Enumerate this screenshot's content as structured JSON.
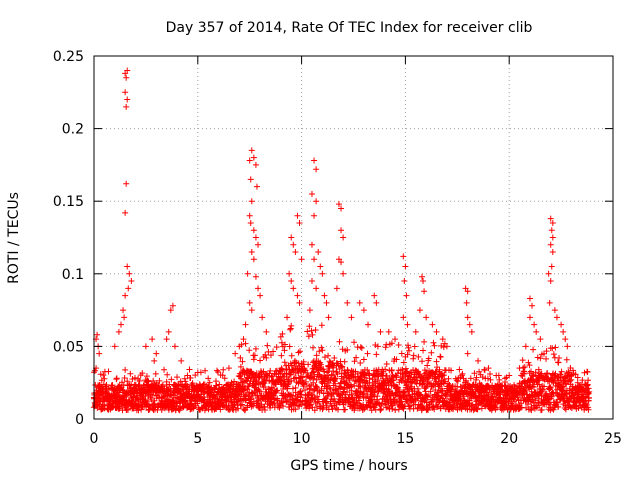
{
  "chart_data": {
    "type": "scatter",
    "title": "Day 357 of 2014, Rate Of TEC Index for receiver clib",
    "xlabel": "GPS time / hours",
    "ylabel": "ROTI / TECUs",
    "xlim": [
      0,
      25
    ],
    "ylim": [
      0,
      0.25
    ],
    "xticks": [
      0,
      5,
      10,
      15,
      20,
      25
    ],
    "xtick_labels": [
      "0",
      "5",
      "10",
      "15",
      "20",
      "25"
    ],
    "yticks": [
      0,
      0.05,
      0.1,
      0.15,
      0.2,
      0.25
    ],
    "ytick_labels": [
      "0",
      "0.05",
      "0.1",
      "0.15",
      "0.2",
      "0.25"
    ],
    "grid": true,
    "marker": "+",
    "color": "#ff0000",
    "series": [
      {
        "name": "ROTI",
        "points": [
          [
            0.1,
            0.055
          ],
          [
            0.15,
            0.058
          ],
          [
            0.2,
            0.05
          ],
          [
            0.25,
            0.045
          ],
          [
            0.1,
            0.035
          ],
          [
            1.5,
            0.238
          ],
          [
            1.55,
            0.235
          ],
          [
            1.6,
            0.24
          ],
          [
            1.5,
            0.225
          ],
          [
            1.55,
            0.215
          ],
          [
            1.6,
            0.22
          ],
          [
            1.55,
            0.162
          ],
          [
            1.5,
            0.142
          ],
          [
            1.6,
            0.105
          ],
          [
            1.7,
            0.1
          ],
          [
            1.8,
            0.095
          ],
          [
            1.65,
            0.09
          ],
          [
            1.5,
            0.085
          ],
          [
            1.4,
            0.075
          ],
          [
            1.45,
            0.07
          ],
          [
            1.2,
            0.06
          ],
          [
            1.3,
            0.065
          ],
          [
            1.0,
            0.05
          ],
          [
            2.5,
            0.05
          ],
          [
            2.8,
            0.055
          ],
          [
            3.0,
            0.045
          ],
          [
            2.9,
            0.04
          ],
          [
            3.7,
            0.075
          ],
          [
            3.8,
            0.078
          ],
          [
            3.6,
            0.06
          ],
          [
            3.5,
            0.055
          ],
          [
            3.9,
            0.05
          ],
          [
            4.2,
            0.04
          ],
          [
            4.5,
            0.03
          ],
          [
            5.0,
            0.032
          ],
          [
            5.5,
            0.028
          ],
          [
            6.5,
            0.035
          ],
          [
            6.8,
            0.045
          ],
          [
            7.0,
            0.05
          ],
          [
            7.5,
            0.178
          ],
          [
            7.6,
            0.185
          ],
          [
            7.7,
            0.18
          ],
          [
            7.8,
            0.175
          ],
          [
            7.55,
            0.165
          ],
          [
            7.85,
            0.16
          ],
          [
            7.6,
            0.15
          ],
          [
            7.5,
            0.14
          ],
          [
            7.55,
            0.135
          ],
          [
            7.7,
            0.13
          ],
          [
            7.8,
            0.125
          ],
          [
            7.9,
            0.12
          ],
          [
            7.6,
            0.115
          ],
          [
            7.7,
            0.11
          ],
          [
            7.4,
            0.1
          ],
          [
            7.8,
            0.098
          ],
          [
            7.9,
            0.09
          ],
          [
            8.0,
            0.085
          ],
          [
            7.5,
            0.08
          ],
          [
            7.6,
            0.075
          ],
          [
            8.1,
            0.07
          ],
          [
            7.3,
            0.065
          ],
          [
            8.3,
            0.06
          ],
          [
            7.2,
            0.055
          ],
          [
            9.5,
            0.125
          ],
          [
            9.6,
            0.12
          ],
          [
            9.8,
            0.14
          ],
          [
            9.9,
            0.135
          ],
          [
            9.7,
            0.115
          ],
          [
            10.0,
            0.11
          ],
          [
            9.4,
            0.1
          ],
          [
            9.5,
            0.095
          ],
          [
            9.6,
            0.09
          ],
          [
            9.8,
            0.085
          ],
          [
            9.9,
            0.08
          ],
          [
            9.3,
            0.07
          ],
          [
            10.6,
            0.178
          ],
          [
            10.7,
            0.172
          ],
          [
            10.5,
            0.155
          ],
          [
            10.7,
            0.15
          ],
          [
            10.6,
            0.14
          ],
          [
            10.5,
            0.12
          ],
          [
            10.8,
            0.115
          ],
          [
            10.6,
            0.11
          ],
          [
            10.9,
            0.105
          ],
          [
            11.0,
            0.1
          ],
          [
            10.5,
            0.095
          ],
          [
            10.7,
            0.09
          ],
          [
            11.1,
            0.085
          ],
          [
            11.2,
            0.08
          ],
          [
            10.4,
            0.075
          ],
          [
            11.3,
            0.07
          ],
          [
            11.8,
            0.148
          ],
          [
            11.9,
            0.145
          ],
          [
            11.9,
            0.13
          ],
          [
            12.0,
            0.125
          ],
          [
            11.8,
            0.11
          ],
          [
            11.9,
            0.108
          ],
          [
            12.0,
            0.1
          ],
          [
            11.7,
            0.09
          ],
          [
            12.2,
            0.08
          ],
          [
            12.4,
            0.07
          ],
          [
            12.8,
            0.08
          ],
          [
            13.0,
            0.075
          ],
          [
            13.5,
            0.085
          ],
          [
            13.6,
            0.08
          ],
          [
            13.2,
            0.065
          ],
          [
            13.8,
            0.06
          ],
          [
            14.2,
            0.06
          ],
          [
            14.5,
            0.055
          ],
          [
            14.9,
            0.112
          ],
          [
            15.0,
            0.105
          ],
          [
            14.95,
            0.095
          ],
          [
            15.05,
            0.085
          ],
          [
            14.9,
            0.07
          ],
          [
            15.1,
            0.065
          ],
          [
            15.5,
            0.06
          ],
          [
            15.8,
            0.098
          ],
          [
            15.85,
            0.095
          ],
          [
            15.9,
            0.088
          ],
          [
            15.7,
            0.075
          ],
          [
            16.0,
            0.07
          ],
          [
            16.3,
            0.065
          ],
          [
            16.5,
            0.06
          ],
          [
            16.8,
            0.055
          ],
          [
            17.0,
            0.05
          ],
          [
            17.9,
            0.09
          ],
          [
            18.0,
            0.088
          ],
          [
            17.95,
            0.08
          ],
          [
            18.0,
            0.07
          ],
          [
            18.1,
            0.065
          ],
          [
            18.2,
            0.06
          ],
          [
            18.0,
            0.045
          ],
          [
            18.5,
            0.04
          ],
          [
            19.0,
            0.035
          ],
          [
            19.5,
            0.03
          ],
          [
            19.8,
            0.028
          ],
          [
            20.0,
            0.03
          ],
          [
            20.5,
            0.035
          ],
          [
            20.8,
            0.05
          ],
          [
            21.0,
            0.083
          ],
          [
            21.1,
            0.078
          ],
          [
            21.0,
            0.07
          ],
          [
            21.2,
            0.065
          ],
          [
            21.3,
            0.06
          ],
          [
            21.5,
            0.055
          ],
          [
            22.0,
            0.138
          ],
          [
            22.1,
            0.135
          ],
          [
            22.05,
            0.13
          ],
          [
            22.1,
            0.125
          ],
          [
            22.0,
            0.12
          ],
          [
            22.1,
            0.115
          ],
          [
            22.05,
            0.105
          ],
          [
            21.9,
            0.1
          ],
          [
            22.0,
            0.095
          ],
          [
            21.95,
            0.08
          ],
          [
            22.2,
            0.075
          ],
          [
            22.3,
            0.07
          ],
          [
            22.5,
            0.065
          ],
          [
            22.6,
            0.06
          ],
          [
            22.7,
            0.055
          ],
          [
            22.8,
            0.05
          ],
          [
            23.0,
            0.03
          ],
          [
            23.3,
            0.025
          ],
          [
            23.6,
            0.02
          ],
          [
            23.8,
            0.018
          ]
        ]
      }
    ]
  }
}
